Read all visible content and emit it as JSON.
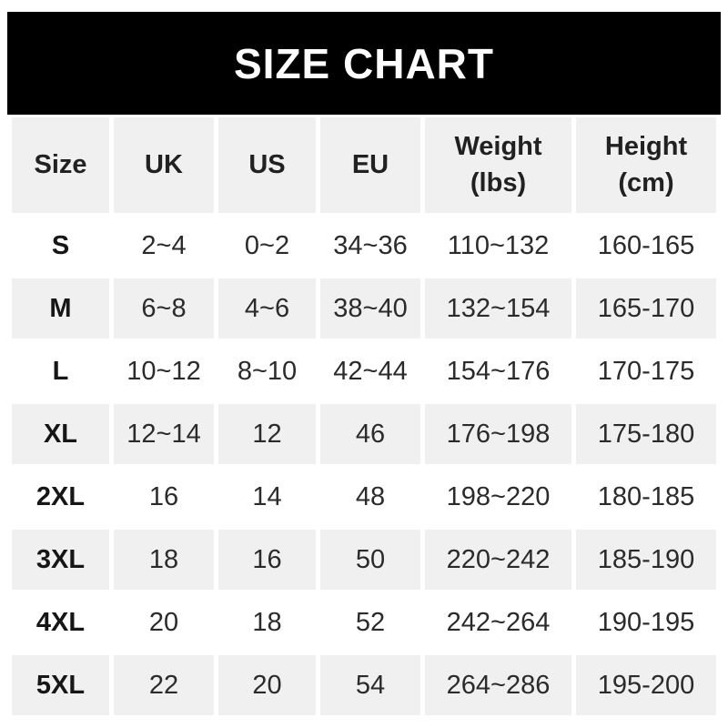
{
  "banner": {
    "title": "SIZE CHART"
  },
  "colors": {
    "banner_bg": "#000000",
    "banner_text": "#ffffff",
    "header_row_bg": "#f0f0f0",
    "alt_row_bg": "#f0f0f0",
    "row_bg": "#ffffff",
    "text": "#2b2b2b"
  },
  "table": {
    "headers": {
      "size": "Size",
      "uk": "UK",
      "us": "US",
      "eu": "EU",
      "weight": "Weight\n(lbs)",
      "height": "Height\n(cm)"
    },
    "rows": [
      {
        "size": "S",
        "uk": "2~4",
        "us": "0~2",
        "eu": "34~36",
        "weight": "110~132",
        "height": "160-165"
      },
      {
        "size": "M",
        "uk": "6~8",
        "us": "4~6",
        "eu": "38~40",
        "weight": "132~154",
        "height": "165-170"
      },
      {
        "size": "L",
        "uk": "10~12",
        "us": "8~10",
        "eu": "42~44",
        "weight": "154~176",
        "height": "170-175"
      },
      {
        "size": "XL",
        "uk": "12~14",
        "us": "12",
        "eu": "46",
        "weight": "176~198",
        "height": "175-180"
      },
      {
        "size": "2XL",
        "uk": "16",
        "us": "14",
        "eu": "48",
        "weight": "198~220",
        "height": "180-185"
      },
      {
        "size": "3XL",
        "uk": "18",
        "us": "16",
        "eu": "50",
        "weight": "220~242",
        "height": "185-190"
      },
      {
        "size": "4XL",
        "uk": "20",
        "us": "18",
        "eu": "52",
        "weight": "242~264",
        "height": "190-195"
      },
      {
        "size": "5XL",
        "uk": "22",
        "us": "20",
        "eu": "54",
        "weight": "264~286",
        "height": "195-200"
      }
    ]
  },
  "chart_data": {
    "type": "table",
    "title": "SIZE CHART",
    "columns": [
      "Size",
      "UK",
      "US",
      "EU",
      "Weight (lbs)",
      "Height (cm)"
    ],
    "rows": [
      [
        "S",
        "2~4",
        "0~2",
        "34~36",
        "110~132",
        "160-165"
      ],
      [
        "M",
        "6~8",
        "4~6",
        "38~40",
        "132~154",
        "165-170"
      ],
      [
        "L",
        "10~12",
        "8~10",
        "42~44",
        "154~176",
        "170-175"
      ],
      [
        "XL",
        "12~14",
        "12",
        "46",
        "176~198",
        "175-180"
      ],
      [
        "2XL",
        "16",
        "14",
        "48",
        "198~220",
        "180-185"
      ],
      [
        "3XL",
        "18",
        "16",
        "50",
        "220~242",
        "185-190"
      ],
      [
        "4XL",
        "20",
        "18",
        "52",
        "242~264",
        "190-195"
      ],
      [
        "5XL",
        "22",
        "20",
        "54",
        "264~286",
        "195-200"
      ]
    ],
    "layout": {
      "header_background": "#f0f0f0",
      "alternating_rows": true,
      "alt_row_background": "#f0f0f0",
      "banner_background": "#000000"
    }
  }
}
